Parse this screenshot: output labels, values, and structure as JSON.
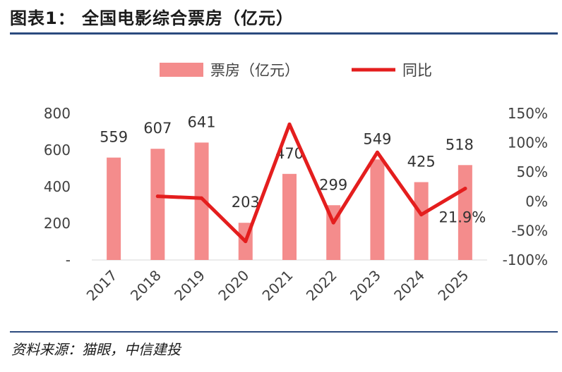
{
  "title": "图表1：  全国电影综合票房（亿元）",
  "source": "资料来源：猫眼，中信建投",
  "chart_data": {
    "type": "bar+line",
    "categories": [
      "2017",
      "2018",
      "2019",
      "2020",
      "2021",
      "2022",
      "2023",
      "2024",
      "2025"
    ],
    "series": [
      {
        "name": "票房（亿元）",
        "type": "bar",
        "axis": "left",
        "color": "#f48c8c",
        "values": [
          559,
          607,
          641,
          203,
          470,
          299,
          549,
          425,
          518
        ],
        "labels": [
          "559",
          "607",
          "641",
          "203",
          "470",
          "299",
          "549",
          "425",
          "518"
        ]
      },
      {
        "name": "同比",
        "type": "line",
        "axis": "right",
        "color": "#e41e1e",
        "values": [
          null,
          8.6,
          5.5,
          -68.3,
          131.5,
          -36.4,
          83.6,
          -22.6,
          21.9
        ],
        "end_label": "21.9%"
      }
    ],
    "y_left": {
      "min": 0,
      "max": 800,
      "ticks": [
        0,
        200,
        400,
        600,
        800
      ],
      "tick_labels": [
        "-",
        "200",
        "400",
        "600",
        "800"
      ]
    },
    "y_right": {
      "min": -100,
      "max": 150,
      "ticks": [
        -100,
        -50,
        0,
        50,
        100,
        150
      ],
      "tick_labels": [
        "-100%",
        "-50%",
        "0%",
        "50%",
        "100%",
        "150%"
      ]
    },
    "legend": {
      "position": "top"
    },
    "grid": false
  }
}
